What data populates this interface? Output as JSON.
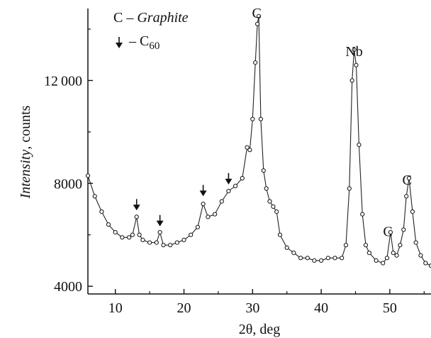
{
  "chart_data": {
    "type": "scatter",
    "xlabel": "2θ, deg",
    "ylabel_italic": "Intensity",
    "ylabel_rest": ", counts",
    "xlim": [
      6,
      56
    ],
    "ylim": [
      3700,
      14800
    ],
    "x_ticks": [
      10,
      20,
      30,
      40,
      50
    ],
    "x_tick_labels": [
      "10",
      "20",
      "30",
      "40",
      "50"
    ],
    "y_ticks": [
      4000,
      8000,
      12000
    ],
    "y_tick_labels": [
      "4000",
      "8000",
      "12 000"
    ],
    "legend": {
      "graphite_symbol": "C",
      "graphite_dash": "–",
      "graphite_name": "Graphite",
      "c60_dash": "–",
      "c60_base": "C",
      "c60_sub": "60"
    },
    "series": [
      {
        "marker": "open-circle",
        "line": true,
        "x": [
          6,
          7,
          8,
          9,
          10,
          11,
          12,
          12.5,
          13.1,
          13.5,
          14,
          15,
          16,
          16.5,
          17,
          18,
          19,
          20,
          21,
          22,
          22.8,
          23.5,
          24.5,
          25.5,
          26.5,
          27.5,
          28.5,
          29.2,
          29.6,
          30,
          30.4,
          30.7,
          30.9,
          31.2,
          31.6,
          32,
          32.5,
          33,
          33.5,
          34,
          35,
          36,
          37,
          38,
          39,
          40,
          41,
          42,
          43,
          43.6,
          44.1,
          44.5,
          44.8,
          45.1,
          45.5,
          46,
          46.5,
          47,
          48,
          49,
          49.6,
          50.1,
          50.5,
          51,
          51.5,
          52,
          52.4,
          52.8,
          53.3,
          53.8,
          54.5,
          55.2,
          56
        ],
        "y": [
          8300,
          7500,
          6900,
          6400,
          6100,
          5900,
          5900,
          6000,
          6700,
          6000,
          5800,
          5700,
          5700,
          6100,
          5600,
          5600,
          5700,
          5800,
          6000,
          6300,
          7200,
          6700,
          6800,
          7300,
          7700,
          7900,
          8200,
          9400,
          9300,
          10500,
          12700,
          14200,
          14500,
          10500,
          8500,
          7800,
          7300,
          7100,
          6900,
          6000,
          5500,
          5300,
          5100,
          5100,
          5000,
          5000,
          5100,
          5100,
          5100,
          5600,
          7800,
          12000,
          13200,
          12600,
          9500,
          6800,
          5600,
          5300,
          5000,
          4900,
          5100,
          6100,
          5300,
          5200,
          5600,
          6200,
          7500,
          8200,
          6900,
          5700,
          5200,
          4900,
          4800
        ]
      }
    ],
    "annotations": [
      {
        "text": "C",
        "x": 30.6,
        "y": 15000
      },
      {
        "text": "Nb",
        "x": 44.8,
        "y": 13500
      },
      {
        "text": "C",
        "x": 49.7,
        "y": 6500
      },
      {
        "text": "C",
        "x": 52.5,
        "y": 8500
      }
    ],
    "c60_arrows": [
      {
        "x": 13.1,
        "y": 6950
      },
      {
        "x": 16.5,
        "y": 6330
      },
      {
        "x": 22.8,
        "y": 7500
      },
      {
        "x": 26.5,
        "y": 7960
      }
    ]
  }
}
